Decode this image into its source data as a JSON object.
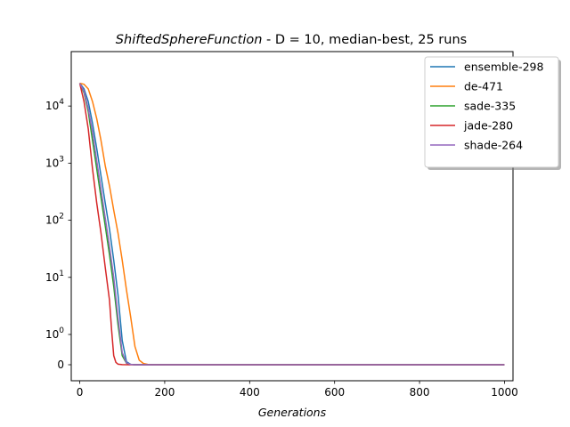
{
  "chart_data": {
    "type": "line",
    "title": {
      "function_name": "ShiftedSphereFunction",
      "rest": " - D = 10, median-best, 25 runs"
    },
    "xlabel": "Generations",
    "ylabel": "",
    "xlim": [
      -20,
      1020
    ],
    "x_ticks": [
      0,
      200,
      400,
      600,
      800,
      1000
    ],
    "y_scale": "symlog",
    "y_ticks": [
      {
        "value": 0,
        "base": "0",
        "exp": ""
      },
      {
        "value": 1,
        "base": "10",
        "exp": "0"
      },
      {
        "value": 10,
        "base": "10",
        "exp": "1"
      },
      {
        "value": 100,
        "base": "10",
        "exp": "2"
      },
      {
        "value": 1000,
        "base": "10",
        "exp": "3"
      },
      {
        "value": 10000,
        "base": "10",
        "exp": "4"
      }
    ],
    "grid": false,
    "legend_position": "top-right",
    "series": [
      {
        "name": "ensemble-298",
        "color": "#1f77b4",
        "points": [
          [
            0,
            25000
          ],
          [
            10,
            20000
          ],
          [
            20,
            12000
          ],
          [
            30,
            5000
          ],
          [
            40,
            1800
          ],
          [
            50,
            600
          ],
          [
            60,
            200
          ],
          [
            70,
            70
          ],
          [
            80,
            20
          ],
          [
            90,
            5
          ],
          [
            100,
            0.8
          ],
          [
            110,
            0.1
          ],
          [
            120,
            0.01
          ],
          [
            130,
            0.001
          ],
          [
            150,
            0
          ],
          [
            1000,
            0
          ]
        ]
      },
      {
        "name": "de-471",
        "color": "#ff7f0e",
        "points": [
          [
            0,
            25000
          ],
          [
            10,
            24000
          ],
          [
            20,
            20000
          ],
          [
            30,
            12000
          ],
          [
            40,
            6000
          ],
          [
            50,
            2500
          ],
          [
            60,
            900
          ],
          [
            70,
            400
          ],
          [
            80,
            150
          ],
          [
            90,
            60
          ],
          [
            100,
            20
          ],
          [
            110,
            6
          ],
          [
            120,
            2
          ],
          [
            130,
            0.6
          ],
          [
            140,
            0.15
          ],
          [
            150,
            0.04
          ],
          [
            160,
            0.01
          ],
          [
            170,
            0.002
          ],
          [
            180,
            0
          ],
          [
            1000,
            0
          ]
        ]
      },
      {
        "name": "sade-335",
        "color": "#2ca02c",
        "points": [
          [
            0,
            25000
          ],
          [
            10,
            17000
          ],
          [
            20,
            8000
          ],
          [
            30,
            2500
          ],
          [
            40,
            800
          ],
          [
            50,
            250
          ],
          [
            60,
            80
          ],
          [
            70,
            25
          ],
          [
            80,
            7
          ],
          [
            90,
            1.5
          ],
          [
            100,
            0.3
          ],
          [
            110,
            0.05
          ],
          [
            120,
            0.008
          ],
          [
            130,
            0.001
          ],
          [
            145,
            0
          ],
          [
            1000,
            0
          ]
        ]
      },
      {
        "name": "jade-280",
        "color": "#d62728",
        "points": [
          [
            0,
            25000
          ],
          [
            10,
            12000
          ],
          [
            20,
            4000
          ],
          [
            30,
            800
          ],
          [
            40,
            200
          ],
          [
            50,
            60
          ],
          [
            60,
            15
          ],
          [
            70,
            4
          ],
          [
            75,
            1.2
          ],
          [
            80,
            0.3
          ],
          [
            85,
            0.08
          ],
          [
            90,
            0.02
          ],
          [
            100,
            0.003
          ],
          [
            115,
            0
          ],
          [
            1000,
            0
          ]
        ]
      },
      {
        "name": "shade-264",
        "color": "#9467bd",
        "points": [
          [
            0,
            25000
          ],
          [
            10,
            18000
          ],
          [
            20,
            9000
          ],
          [
            30,
            3500
          ],
          [
            40,
            1100
          ],
          [
            50,
            350
          ],
          [
            60,
            110
          ],
          [
            70,
            35
          ],
          [
            80,
            10
          ],
          [
            90,
            2
          ],
          [
            100,
            0.4
          ],
          [
            110,
            0.06
          ],
          [
            120,
            0.01
          ],
          [
            130,
            0.001
          ],
          [
            150,
            0
          ],
          [
            1000,
            0
          ]
        ]
      }
    ]
  }
}
